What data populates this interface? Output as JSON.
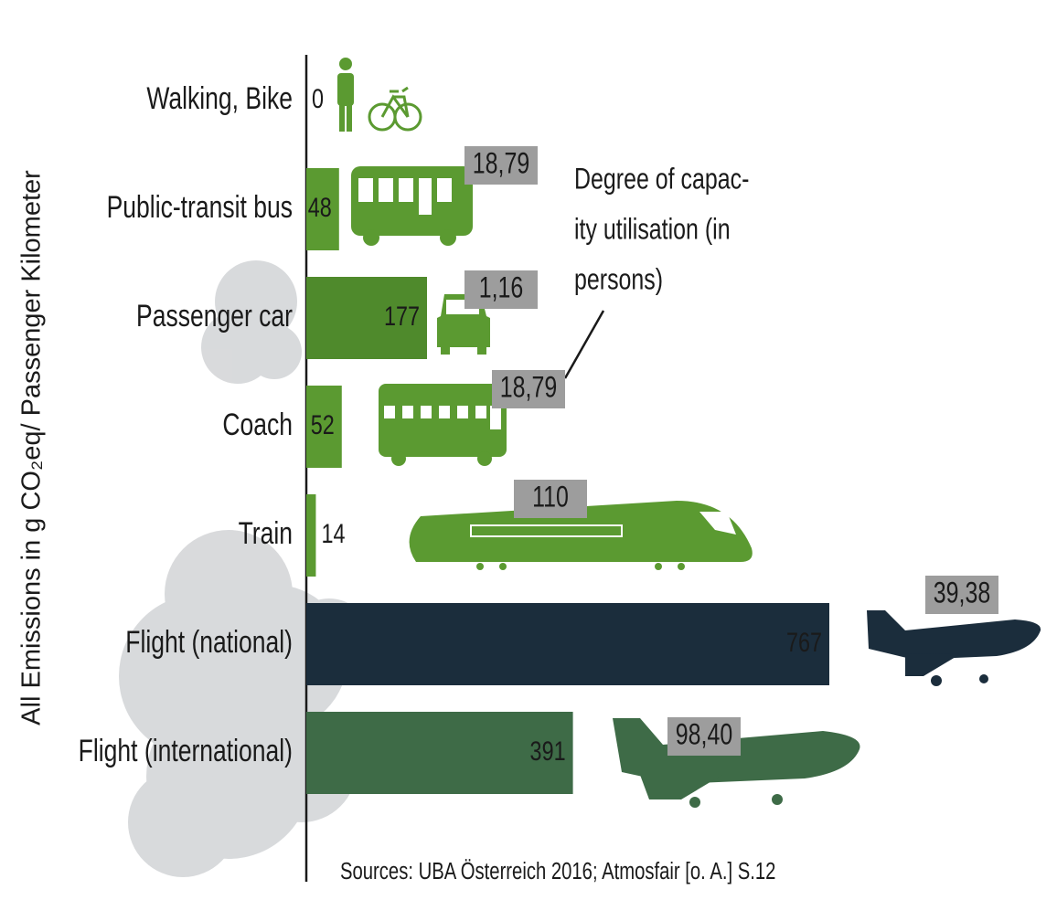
{
  "chart_data": {
    "type": "bar",
    "orientation": "horizontal",
    "y_label": "All Emissions in g CO₂eq/ Passenger Kilometer",
    "categories": [
      "Walking, Bike",
      "Public-transit bus",
      "Passenger car",
      "Coach",
      "Train",
      "Flight (national)",
      "Flight (international)"
    ],
    "values": [
      0,
      48,
      177,
      52,
      14,
      767,
      391
    ],
    "colors": [
      "#5b9a31",
      "#5b9a31",
      "#4f8a2c",
      "#5b9a31",
      "#5b9a31",
      "#1b2d3c",
      "#3e6b47"
    ],
    "capacity_labels": [
      null,
      "18,79",
      "1,16",
      "18,79",
      "110",
      "39,38",
      "98,40"
    ],
    "annotation": [
      "Degree of capac-",
      "ity utilisation (in",
      "persons)"
    ],
    "source": "Sources: UBA Österreich 2016; Atmosfair [o. A.] S.12"
  }
}
